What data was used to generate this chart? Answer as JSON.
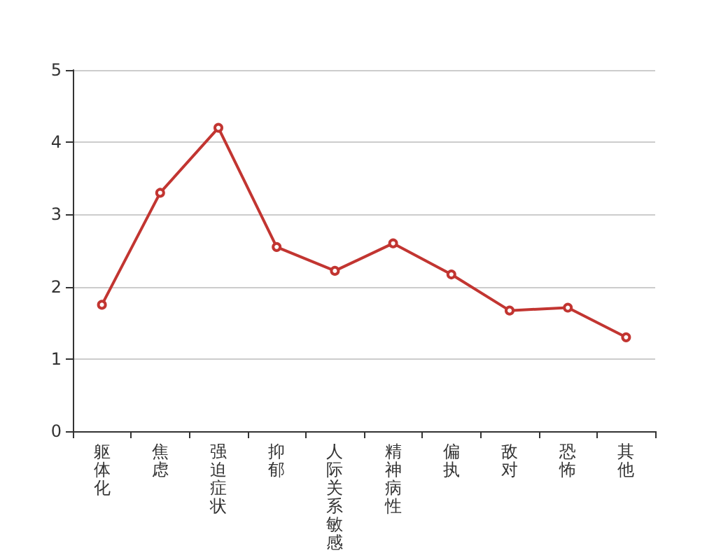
{
  "chart_data": {
    "type": "line",
    "categories": [
      "躯体化",
      "焦虑",
      "强迫症状",
      "抑郁",
      "人际关系敏感",
      "精神病性",
      "偏执",
      "敌对",
      "恐怖",
      "其他"
    ],
    "series": [
      {
        "color": "#c23531",
        "values": [
          1.75,
          3.3,
          4.2,
          2.55,
          2.22,
          2.6,
          2.17,
          1.67,
          1.71,
          1.3
        ]
      }
    ],
    "ylim": [
      0,
      5
    ],
    "yticks": [
      0,
      1,
      2,
      3,
      4,
      5
    ],
    "grid": "y",
    "marker": "circle",
    "line_style": "solid"
  }
}
